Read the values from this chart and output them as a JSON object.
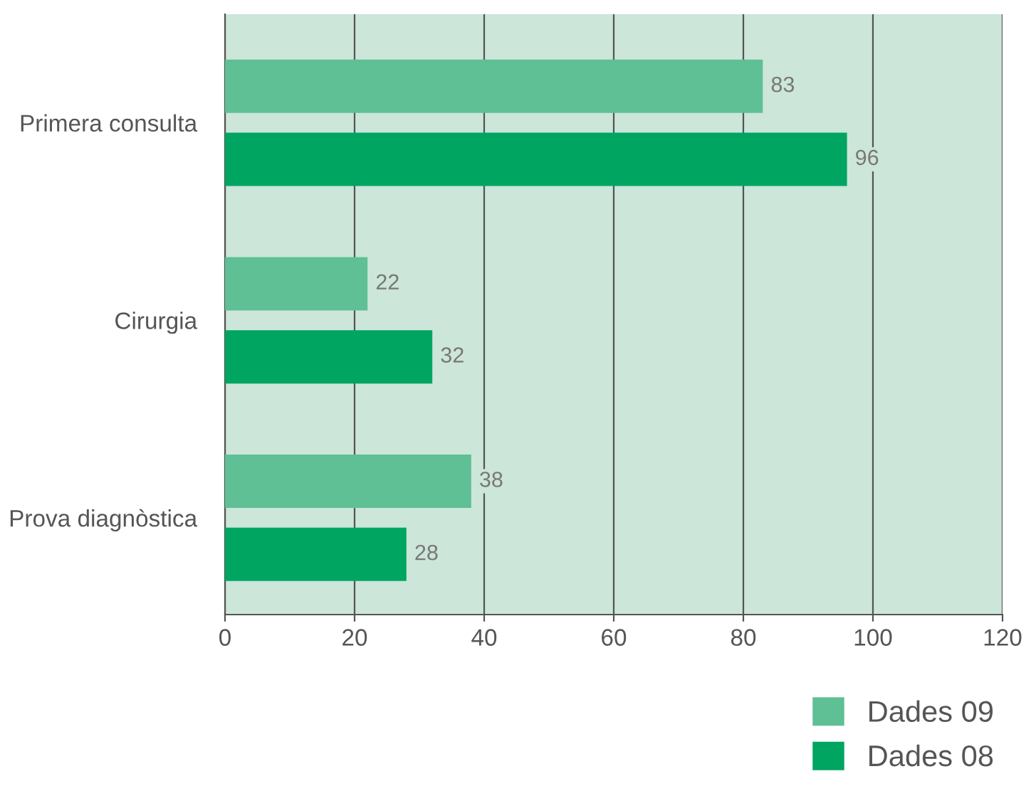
{
  "chart_data": {
    "type": "bar",
    "orientation": "horizontal",
    "categories": [
      "Primera consulta",
      "Cirurgia",
      "Prova diagnòstica"
    ],
    "series": [
      {
        "name": "Dades 09",
        "color": "#5fbf95",
        "values": [
          83,
          22,
          38
        ]
      },
      {
        "name": "Dades 08",
        "color": "#00a562",
        "values": [
          96,
          32,
          28
        ]
      }
    ],
    "xlim": [
      0,
      120
    ],
    "xticks": [
      0,
      20,
      40,
      60,
      80,
      100,
      120
    ],
    "grid": "x",
    "legend": "bottom right",
    "data_labels": true
  }
}
